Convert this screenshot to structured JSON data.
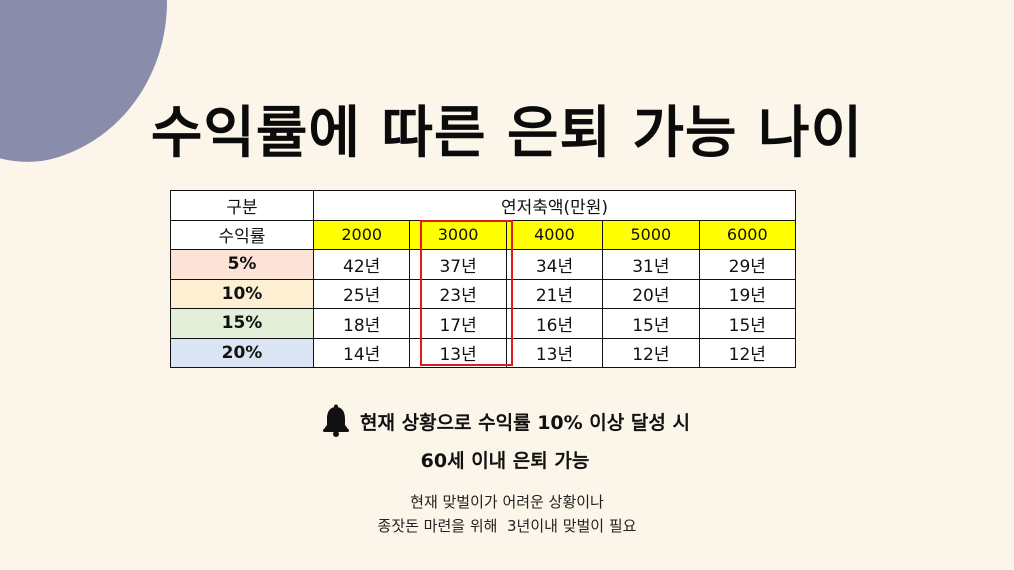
{
  "title": "수익률에 따른 은퇴 가능 나이",
  "table": {
    "corner_label": "구분",
    "group_header": "연저축액(만원)",
    "rate_header": "수익률",
    "columns": [
      "2000",
      "3000",
      "4000",
      "5000",
      "6000"
    ],
    "rows": [
      {
        "rate": "5%",
        "cells": [
          "42년",
          "37년",
          "34년",
          "31년",
          "29년"
        ]
      },
      {
        "rate": "10%",
        "cells": [
          "25년",
          "23년",
          "21년",
          "20년",
          "19년"
        ]
      },
      {
        "rate": "15%",
        "cells": [
          "18년",
          "17년",
          "16년",
          "15년",
          "15년"
        ]
      },
      {
        "rate": "20%",
        "cells": [
          "14년",
          "13년",
          "13년",
          "12년",
          "12년"
        ]
      }
    ],
    "header_highlight_color": "#ffff00",
    "row_colors": [
      "#fbe3d8",
      "#fdf0d2",
      "#e3efd9",
      "#dae4f3"
    ],
    "highlight_border_color": "#e01b1b"
  },
  "note": {
    "icon": "bell-icon",
    "line1": "현재 상황으로 수익률 10% 이상 달성 시",
    "line2": "60세 이내 은퇴 가능"
  },
  "sub": {
    "line1": "현재 맞벌이가 어려운 상황이나",
    "line2": "종잣돈 마련을 위해  3년이내 맞벌이 필요"
  }
}
